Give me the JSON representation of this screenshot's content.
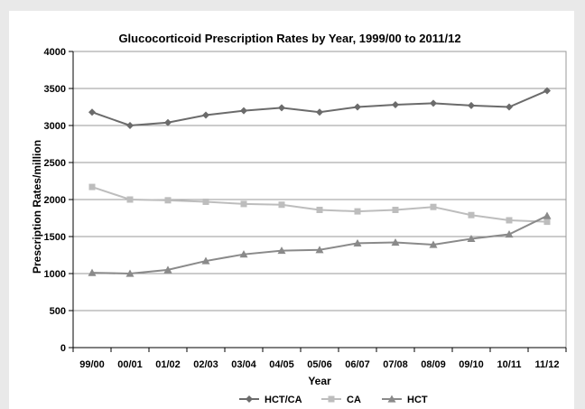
{
  "chart_data": {
    "type": "line",
    "title": "Glucocorticoid Prescription Rates by Year, 1999/00 to 2011/12",
    "xlabel": "Year",
    "ylabel": "Prescription Rates/million",
    "ylim": [
      0,
      4000
    ],
    "yticks": [
      0,
      500,
      1000,
      1500,
      2000,
      2500,
      3000,
      3500,
      4000
    ],
    "grid": true,
    "legend_position": "bottom",
    "categories": [
      "99/00",
      "00/01",
      "01/02",
      "02/03",
      "03/04",
      "04/05",
      "05/06",
      "06/07",
      "07/08",
      "08/09",
      "09/10",
      "10/11",
      "11/12"
    ],
    "series": [
      {
        "name": "HCT/CA",
        "marker": "diamond",
        "color": "#6b6b6b",
        "values": [
          3180,
          3000,
          3040,
          3140,
          3200,
          3240,
          3180,
          3250,
          3280,
          3300,
          3270,
          3250,
          3470
        ]
      },
      {
        "name": "CA",
        "marker": "square",
        "color": "#bdbdbd",
        "values": [
          2170,
          2000,
          1990,
          1970,
          1940,
          1930,
          1860,
          1840,
          1860,
          1900,
          1790,
          1720,
          1700
        ]
      },
      {
        "name": "HCT",
        "marker": "triangle",
        "color": "#8a8a8a",
        "values": [
          1010,
          1000,
          1050,
          1170,
          1260,
          1310,
          1320,
          1410,
          1420,
          1390,
          1470,
          1530,
          1780
        ]
      }
    ]
  }
}
